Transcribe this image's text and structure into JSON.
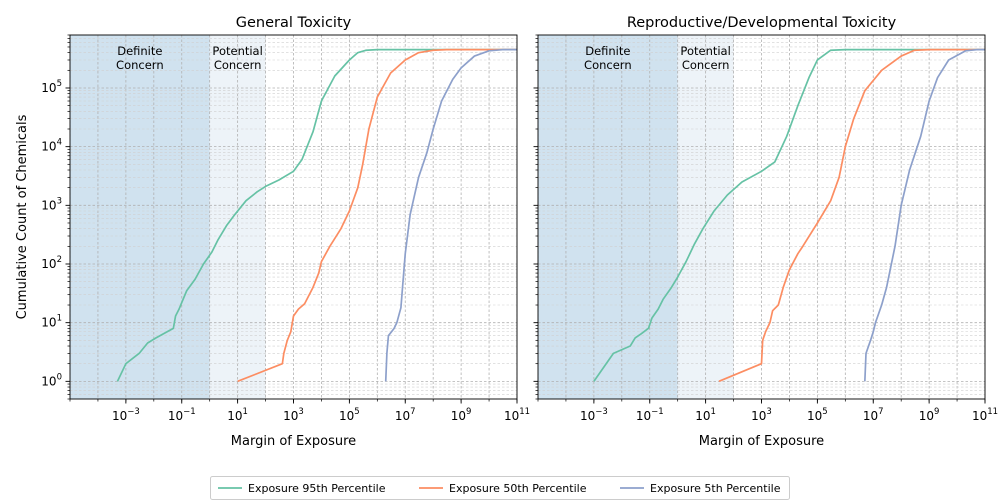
{
  "chart_data": [
    {
      "type": "line",
      "title": "General Toxicity",
      "xlabel": "Margin of Exposure",
      "ylabel": "Cumulative Count of Chemicals",
      "xscale": "log",
      "yscale": "log",
      "xlim": [
        1e-05,
        100000000000
      ],
      "ylim": [
        0.5,
        800000
      ],
      "xticks": [
        {
          "value": 0.001,
          "base": "10",
          "exp": "−3"
        },
        {
          "value": 0.1,
          "base": "10",
          "exp": "−1"
        },
        {
          "value": 10,
          "base": "10",
          "exp": "1"
        },
        {
          "value": 1000,
          "base": "10",
          "exp": "3"
        },
        {
          "value": 100000,
          "base": "10",
          "exp": "5"
        },
        {
          "value": 10000000,
          "base": "10",
          "exp": "7"
        },
        {
          "value": 1000000000,
          "base": "10",
          "exp": "9"
        },
        {
          "value": 100000000000,
          "base": "10",
          "exp": "11"
        }
      ],
      "yticks": [
        {
          "value": 1,
          "base": "10",
          "exp": "0"
        },
        {
          "value": 10,
          "base": "10",
          "exp": "1"
        },
        {
          "value": 100,
          "base": "10",
          "exp": "2"
        },
        {
          "value": 1000,
          "base": "10",
          "exp": "3"
        },
        {
          "value": 10000,
          "base": "10",
          "exp": "4"
        },
        {
          "value": 100000,
          "base": "10",
          "exp": "5"
        }
      ],
      "grid": true,
      "regions": [
        {
          "label": [
            "Definite",
            "Concern"
          ],
          "x": [
            1e-05,
            1
          ],
          "color": "#d0e2ef"
        },
        {
          "label": [
            "Potential",
            "Concern"
          ],
          "x": [
            1,
            100
          ],
          "color": "#edf3f8"
        }
      ],
      "series": [
        {
          "name": "Exposure 95th Percentile",
          "color": "#66c2a5",
          "points": [
            [
              0.0005,
              1
            ],
            [
              0.001,
              2
            ],
            [
              0.003,
              3
            ],
            [
              0.006,
              4.5
            ],
            [
              0.012,
              5.5
            ],
            [
              0.03,
              7
            ],
            [
              0.05,
              8
            ],
            [
              0.06,
              13
            ],
            [
              0.08,
              17
            ],
            [
              0.1,
              22
            ],
            [
              0.15,
              35
            ],
            [
              0.3,
              55
            ],
            [
              0.6,
              100
            ],
            [
              1.2,
              160
            ],
            [
              2,
              260
            ],
            [
              4,
              450
            ],
            [
              8,
              700
            ],
            [
              20,
              1200
            ],
            [
              50,
              1700
            ],
            [
              100,
              2100
            ],
            [
              300,
              2700
            ],
            [
              1000,
              3800
            ],
            [
              2000,
              6000
            ],
            [
              5000,
              18000
            ],
            [
              10000,
              60000
            ],
            [
              30000,
              160000
            ],
            [
              100000,
              300000
            ],
            [
              200000,
              400000
            ],
            [
              400000,
              440000
            ],
            [
              1000000,
              450000
            ],
            [
              100000000,
              450000
            ],
            [
              100000000000,
              450000
            ]
          ]
        },
        {
          "name": "Exposure 50th Percentile",
          "color": "#fc8d62",
          "points": [
            [
              10,
              1
            ],
            [
              400,
              2
            ],
            [
              450,
              3
            ],
            [
              600,
              5
            ],
            [
              800,
              7
            ],
            [
              1000,
              13
            ],
            [
              1500,
              17
            ],
            [
              2500,
              21
            ],
            [
              5000,
              40
            ],
            [
              8000,
              70
            ],
            [
              10000,
              110
            ],
            [
              20000,
              200
            ],
            [
              50000,
              400
            ],
            [
              100000,
              800
            ],
            [
              200000,
              2000
            ],
            [
              300000,
              5000
            ],
            [
              500000,
              20000
            ],
            [
              1000000,
              70000
            ],
            [
              3000000,
              180000
            ],
            [
              10000000,
              300000
            ],
            [
              30000000,
              400000
            ],
            [
              100000000,
              440000
            ],
            [
              300000000,
              450000
            ],
            [
              100000000000,
              450000
            ]
          ]
        },
        {
          "name": "Exposure 5th Percentile",
          "color": "#8da0cb",
          "points": [
            [
              2000000,
              1
            ],
            [
              2200000,
              3
            ],
            [
              2500000,
              6
            ],
            [
              4000000,
              8
            ],
            [
              5000000,
              10
            ],
            [
              7000000,
              18
            ],
            [
              8000000,
              40
            ],
            [
              10000000,
              150
            ],
            [
              15000000,
              700
            ],
            [
              30000000,
              3000
            ],
            [
              60000000,
              8000
            ],
            [
              100000000,
              20000
            ],
            [
              200000000,
              60000
            ],
            [
              500000000,
              140000
            ],
            [
              1000000000,
              220000
            ],
            [
              3000000000,
              350000
            ],
            [
              10000000000,
              430000
            ],
            [
              30000000000,
              450000
            ],
            [
              100000000000,
              450000
            ]
          ]
        }
      ]
    },
    {
      "type": "line",
      "title": "Reproductive/Developmental Toxicity",
      "xlabel": "Margin of Exposure",
      "ylabel": "",
      "xscale": "log",
      "yscale": "log",
      "xlim": [
        1e-05,
        100000000000
      ],
      "ylim": [
        0.5,
        800000
      ],
      "xticks": [
        {
          "value": 0.001,
          "base": "10",
          "exp": "−3"
        },
        {
          "value": 0.1,
          "base": "10",
          "exp": "−1"
        },
        {
          "value": 10,
          "base": "10",
          "exp": "1"
        },
        {
          "value": 1000,
          "base": "10",
          "exp": "3"
        },
        {
          "value": 100000,
          "base": "10",
          "exp": "5"
        },
        {
          "value": 10000000,
          "base": "10",
          "exp": "7"
        },
        {
          "value": 1000000000,
          "base": "10",
          "exp": "9"
        },
        {
          "value": 100000000000,
          "base": "10",
          "exp": "11"
        }
      ],
      "yticks": [],
      "grid": true,
      "regions": [
        {
          "label": [
            "Definite",
            "Concern"
          ],
          "x": [
            1e-05,
            1
          ],
          "color": "#d0e2ef"
        },
        {
          "label": [
            "Potential",
            "Concern"
          ],
          "x": [
            1,
            100
          ],
          "color": "#edf3f8"
        }
      ],
      "series": [
        {
          "name": "Exposure 95th Percentile",
          "color": "#66c2a5",
          "points": [
            [
              0.001,
              1
            ],
            [
              0.005,
              3
            ],
            [
              0.02,
              4
            ],
            [
              0.03,
              5.5
            ],
            [
              0.05,
              6.5
            ],
            [
              0.09,
              8
            ],
            [
              0.12,
              12
            ],
            [
              0.2,
              17
            ],
            [
              0.3,
              25
            ],
            [
              0.6,
              40
            ],
            [
              1,
              60
            ],
            [
              2,
              110
            ],
            [
              4,
              220
            ],
            [
              8,
              400
            ],
            [
              20,
              800
            ],
            [
              60,
              1500
            ],
            [
              200,
              2500
            ],
            [
              1000,
              3800
            ],
            [
              3000,
              5500
            ],
            [
              8000,
              15000
            ],
            [
              20000,
              50000
            ],
            [
              50000,
              150000
            ],
            [
              100000,
              300000
            ],
            [
              300000,
              440000
            ],
            [
              1000000,
              450000
            ],
            [
              100000000000,
              450000
            ]
          ]
        },
        {
          "name": "Exposure 50th Percentile",
          "color": "#fc8d62",
          "points": [
            [
              30,
              1
            ],
            [
              1000,
              2
            ],
            [
              1100,
              5
            ],
            [
              1400,
              7
            ],
            [
              2000,
              10
            ],
            [
              2500,
              16
            ],
            [
              4000,
              20
            ],
            [
              6000,
              40
            ],
            [
              10000,
              80
            ],
            [
              20000,
              150
            ],
            [
              30000,
              200
            ],
            [
              100000,
              500
            ],
            [
              300000,
              1200
            ],
            [
              600000,
              3000
            ],
            [
              1000000,
              10000
            ],
            [
              2000000,
              30000
            ],
            [
              5000000,
              90000
            ],
            [
              20000000,
              200000
            ],
            [
              100000000,
              350000
            ],
            [
              300000000,
              440000
            ],
            [
              1000000000,
              450000
            ],
            [
              100000000000,
              450000
            ]
          ]
        },
        {
          "name": "Exposure 5th Percentile",
          "color": "#8da0cb",
          "points": [
            [
              5000000,
              1
            ],
            [
              5500000,
              3
            ],
            [
              8000000,
              5
            ],
            [
              10000000,
              7
            ],
            [
              12000000,
              10
            ],
            [
              20000000,
              20
            ],
            [
              30000000,
              40
            ],
            [
              60000000,
              200
            ],
            [
              100000000,
              1000
            ],
            [
              200000000,
              4000
            ],
            [
              500000000,
              15000
            ],
            [
              1000000000,
              60000
            ],
            [
              2000000000,
              150000
            ],
            [
              5000000000,
              300000
            ],
            [
              20000000000,
              430000
            ],
            [
              50000000000,
              450000
            ],
            [
              100000000000,
              450000
            ]
          ]
        }
      ]
    }
  ],
  "legend": {
    "placement": "bottom-center",
    "items": [
      {
        "label": "Exposure 95th Percentile",
        "color": "#66c2a5"
      },
      {
        "label": "Exposure 50th Percentile",
        "color": "#fc8d62"
      },
      {
        "label": "Exposure 5th Percentile",
        "color": "#8da0cb"
      }
    ]
  }
}
